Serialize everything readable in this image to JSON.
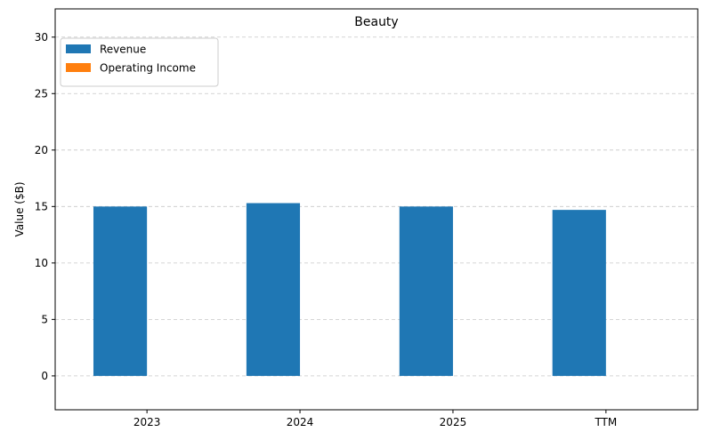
{
  "chart_data": {
    "type": "bar",
    "title": "Beauty",
    "xlabel": "",
    "ylabel": "Value ($B)",
    "categories": [
      "2023",
      "2024",
      "2025",
      "TTM"
    ],
    "series": [
      {
        "name": "Revenue",
        "values": [
          15.0,
          15.3,
          15.0,
          14.7
        ],
        "color": "#1f77b4"
      },
      {
        "name": "Operating Income",
        "values": [
          0,
          0,
          0,
          0
        ],
        "color": "#ff7f0e"
      }
    ],
    "ylim": [
      -3,
      32.5
    ],
    "yticks": [
      0,
      5,
      10,
      15,
      20,
      25,
      30
    ],
    "grid": true,
    "legend_position": "top-left"
  }
}
